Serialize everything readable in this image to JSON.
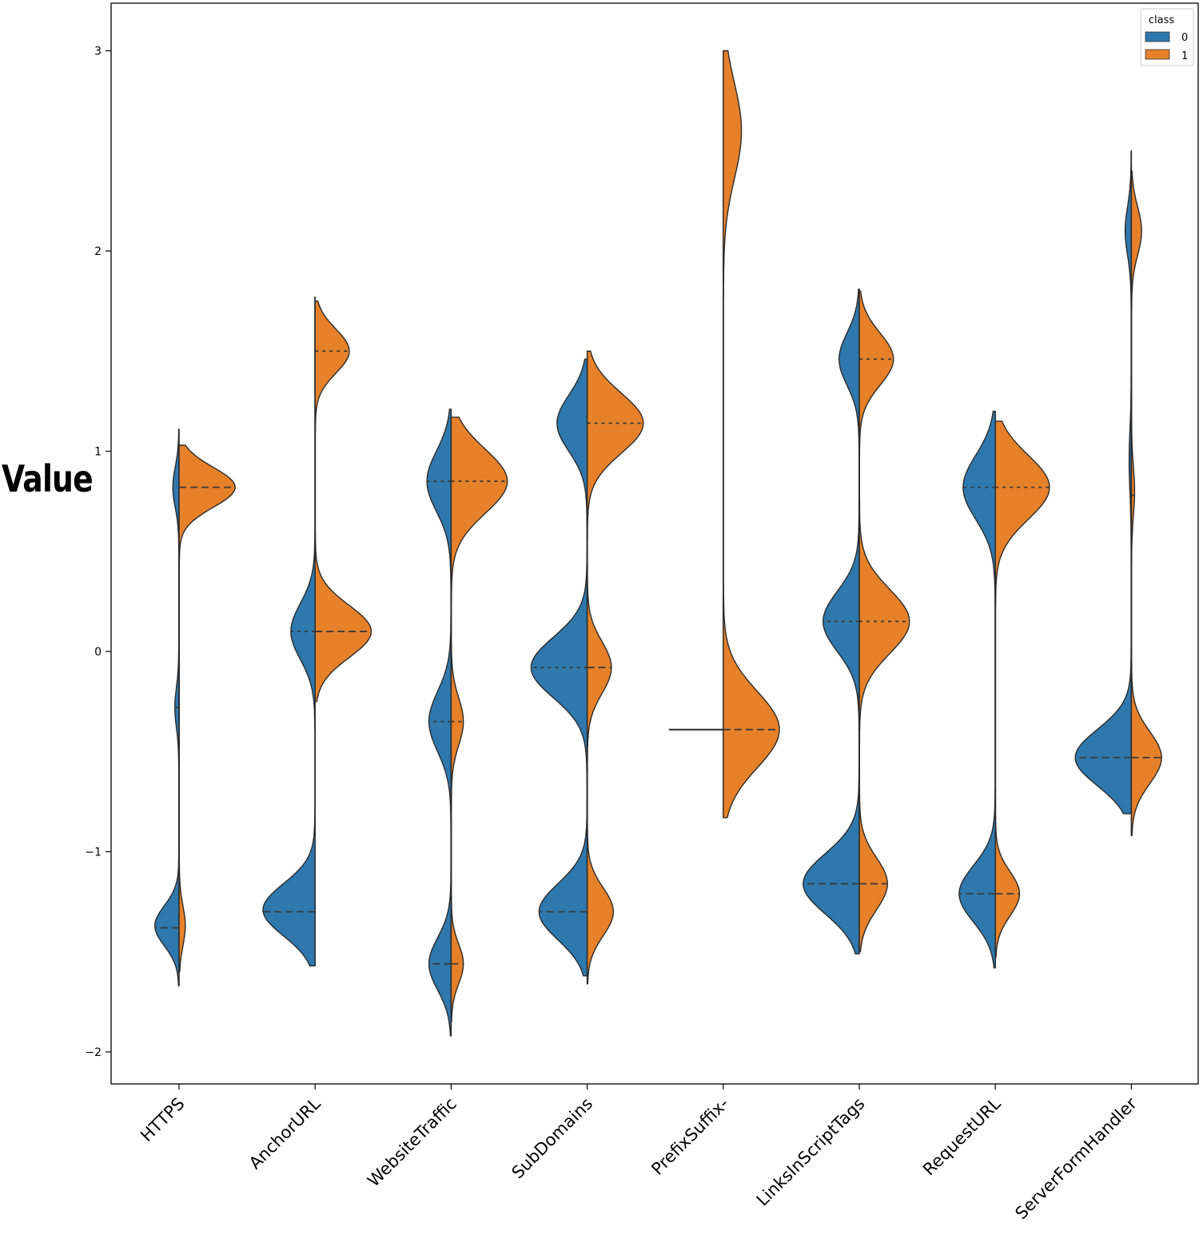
{
  "chart_data": {
    "type": "violin",
    "split": true,
    "title": "",
    "xlabel": "",
    "ylabel": "Value",
    "ylim": [
      -2.2,
      3.2
    ],
    "yticks": [
      -2,
      -1,
      0,
      1,
      2,
      3
    ],
    "ytick_labels": [
      "−2",
      "−1",
      "0",
      "1",
      "2",
      "3"
    ],
    "legend": {
      "title": "class",
      "position": "top-right",
      "entries": [
        {
          "label": "0",
          "color": "#2f78ad"
        },
        {
          "label": "1",
          "color": "#e6812a"
        }
      ]
    },
    "categories": [
      "HTTPS",
      "AnchorURL",
      "WebsiteTraffic",
      "SubDomains",
      "PrefixSuffix-",
      "LinksInScriptTags",
      "RequestURL",
      "ServerFormHandler"
    ],
    "violins": [
      {
        "category": "HTTPS",
        "class0": {
          "range": [
            -1.67,
            1.11
          ],
          "modes": [
            {
              "at": -1.37,
              "height": 0.12,
              "sigma": 0.1
            },
            {
              "at": 0.82,
              "height": 0.03,
              "sigma": 0.1
            },
            {
              "at": -0.28,
              "height": 0.02,
              "sigma": 0.1
            }
          ],
          "quartiles": [
            -1.38,
            -0.28
          ]
        },
        "class1": {
          "range": [
            -1.6,
            1.03
          ],
          "modes": [
            {
              "at": 0.82,
              "height": 0.28,
              "sigma": 0.1
            },
            {
              "at": -1.37,
              "height": 0.03,
              "sigma": 0.1
            }
          ],
          "quartiles": [
            0.82
          ]
        }
      },
      {
        "category": "AnchorURL",
        "class0": {
          "range": [
            -1.57,
            1.77
          ],
          "modes": [
            {
              "at": -1.29,
              "height": 0.26,
              "sigma": 0.13
            },
            {
              "at": 0.1,
              "height": 0.12,
              "sigma": 0.14
            }
          ],
          "quartiles": [
            -1.3,
            0.1
          ]
        },
        "class1": {
          "range": [
            -0.25,
            1.75
          ],
          "modes": [
            {
              "at": 0.1,
              "height": 0.28,
              "sigma": 0.13
            },
            {
              "at": 1.5,
              "height": 0.17,
              "sigma": 0.11
            }
          ],
          "quartiles": [
            0.1,
            1.5
          ]
        }
      },
      {
        "category": "WebsiteTraffic",
        "class0": {
          "range": [
            -1.92,
            1.21
          ],
          "modes": [
            {
              "at": -1.56,
              "height": 0.11,
              "sigma": 0.13
            },
            {
              "at": -0.35,
              "height": 0.11,
              "sigma": 0.15
            },
            {
              "at": 0.85,
              "height": 0.12,
              "sigma": 0.15
            }
          ],
          "quartiles": [
            -1.56,
            -0.35,
            0.85
          ]
        },
        "class1": {
          "range": [
            -1.85,
            1.17
          ],
          "modes": [
            {
              "at": 0.85,
              "height": 0.28,
              "sigma": 0.16
            },
            {
              "at": -0.35,
              "height": 0.06,
              "sigma": 0.12
            },
            {
              "at": -1.56,
              "height": 0.06,
              "sigma": 0.1
            }
          ],
          "quartiles": [
            -1.56,
            -0.35,
            0.85
          ]
        }
      },
      {
        "category": "SubDomains",
        "class0": {
          "range": [
            -1.62,
            1.46
          ],
          "modes": [
            {
              "at": -1.3,
              "height": 0.24,
              "sigma": 0.14
            },
            {
              "at": -0.08,
              "height": 0.28,
              "sigma": 0.15
            },
            {
              "at": 1.14,
              "height": 0.15,
              "sigma": 0.14
            }
          ],
          "quartiles": [
            -1.3,
            -0.08
          ]
        },
        "class1": {
          "range": [
            -1.66,
            1.5
          ],
          "modes": [
            {
              "at": 1.14,
              "height": 0.28,
              "sigma": 0.15
            },
            {
              "at": -0.08,
              "height": 0.12,
              "sigma": 0.13
            },
            {
              "at": -1.3,
              "height": 0.13,
              "sigma": 0.12
            }
          ],
          "quartiles": [
            -0.08,
            1.14
          ]
        }
      },
      {
        "category": "PrefixSuffix-",
        "class0": {
          "range": [
            -0.39,
            -0.39
          ],
          "modes": [],
          "quartiles": []
        },
        "class1": {
          "range": [
            -0.83,
            3.0
          ],
          "modes": [
            {
              "at": -0.39,
              "height": 0.28,
              "sigma": 0.19
            },
            {
              "at": 2.6,
              "height": 0.09,
              "sigma": 0.24
            }
          ],
          "quartiles": [
            -0.39
          ]
        }
      },
      {
        "category": "LinksInScriptTags",
        "class0": {
          "range": [
            -1.51,
            1.81
          ],
          "modes": [
            {
              "at": -1.16,
              "height": 0.28,
              "sigma": 0.15
            },
            {
              "at": 0.15,
              "height": 0.18,
              "sigma": 0.15
            },
            {
              "at": 1.46,
              "height": 0.1,
              "sigma": 0.13
            }
          ],
          "quartiles": [
            -1.16,
            0.15
          ]
        },
        "class1": {
          "range": [
            -1.5,
            1.8
          ],
          "modes": [
            {
              "at": 0.15,
              "height": 0.25,
              "sigma": 0.16
            },
            {
              "at": -1.16,
              "height": 0.14,
              "sigma": 0.13
            },
            {
              "at": 1.46,
              "height": 0.17,
              "sigma": 0.13
            }
          ],
          "quartiles": [
            -1.16,
            0.15,
            1.46
          ]
        }
      },
      {
        "category": "RequestURL",
        "class0": {
          "range": [
            -1.58,
            1.2
          ],
          "modes": [
            {
              "at": -1.21,
              "height": 0.18,
              "sigma": 0.14
            },
            {
              "at": 0.82,
              "height": 0.16,
              "sigma": 0.16
            }
          ],
          "quartiles": [
            -1.21,
            0.82
          ]
        },
        "class1": {
          "range": [
            -1.53,
            1.15
          ],
          "modes": [
            {
              "at": 0.82,
              "height": 0.27,
              "sigma": 0.16
            },
            {
              "at": -1.21,
              "height": 0.12,
              "sigma": 0.11
            }
          ],
          "quartiles": [
            -1.21,
            0.82
          ]
        }
      },
      {
        "category": "ServerFormHandler",
        "class0": {
          "range": [
            -0.81,
            2.5
          ],
          "modes": [
            {
              "at": -0.53,
              "height": 0.28,
              "sigma": 0.14
            },
            {
              "at": 2.1,
              "height": 0.03,
              "sigma": 0.12
            },
            {
              "at": 0.95,
              "height": 0.01,
              "sigma": 0.15
            }
          ],
          "quartiles": [
            -0.53
          ]
        },
        "class1": {
          "range": [
            -0.92,
            2.4
          ],
          "modes": [
            {
              "at": -0.53,
              "height": 0.15,
              "sigma": 0.13
            },
            {
              "at": 2.1,
              "height": 0.05,
              "sigma": 0.12
            },
            {
              "at": 0.8,
              "height": 0.015,
              "sigma": 0.12
            }
          ],
          "quartiles": [
            -0.53,
            0.78
          ]
        }
      }
    ]
  }
}
